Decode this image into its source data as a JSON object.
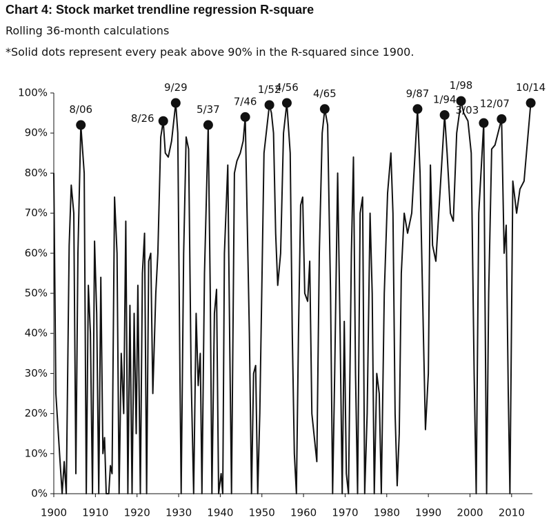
{
  "chart_data": {
    "type": "line",
    "title": "Chart 4: Stock market trendline regression R-square",
    "subtitle": "Rolling 36-month calculations",
    "note": "*Solid dots represent every peak above 90% in the R-squared since 1900.",
    "color": "#111111",
    "xlim": [
      1900,
      2015
    ],
    "xticks": [
      1900,
      1910,
      1920,
      1930,
      1940,
      1950,
      1960,
      1970,
      1980,
      1990,
      2000,
      2010
    ],
    "ylim": [
      0,
      100
    ],
    "yticks": [
      {
        "value": 0,
        "label": "0%"
      },
      {
        "value": 10,
        "label": "10%"
      },
      {
        "value": 20,
        "label": "20%"
      },
      {
        "value": 30,
        "label": "30%"
      },
      {
        "value": 40,
        "label": "40%"
      },
      {
        "value": 50,
        "label": "50%"
      },
      {
        "value": 60,
        "label": "60%"
      },
      {
        "value": 70,
        "label": "70%"
      },
      {
        "value": 80,
        "label": "80%"
      },
      {
        "value": 90,
        "label": "90%"
      },
      {
        "value": 100,
        "label": "100%"
      }
    ],
    "x": [
      1900,
      1900.5,
      1901.5,
      1902,
      1902.5,
      1903,
      1903.7,
      1904.2,
      1904.8,
      1905.3,
      1905.8,
      1906.5,
      1907.3,
      1907.8,
      1908.3,
      1908.8,
      1909.3,
      1909.8,
      1910.3,
      1910.8,
      1911.3,
      1911.8,
      1912.2,
      1912.6,
      1913.2,
      1913.6,
      1914.0,
      1914.6,
      1915.2,
      1915.7,
      1916.2,
      1916.8,
      1917.3,
      1917.8,
      1918.3,
      1918.8,
      1919.3,
      1919.8,
      1920.2,
      1920.8,
      1921.3,
      1921.8,
      1922.3,
      1922.8,
      1923.3,
      1923.8,
      1924.5,
      1925,
      1925.7,
      1926.3,
      1926.8,
      1927.5,
      1928.3,
      1929.3,
      1929.8,
      1930.3,
      1930.6,
      1931.2,
      1931.8,
      1932.4,
      1933,
      1933.6,
      1934.2,
      1934.7,
      1935.2,
      1935.6,
      1936.2,
      1937.1,
      1937.6,
      1938,
      1938.6,
      1939.1,
      1939.6,
      1940.2,
      1940.6,
      1941.0,
      1941.8,
      1942.3,
      1942.7,
      1943.4,
      1944.0,
      1944.8,
      1945.5,
      1946.0,
      1947,
      1947.5,
      1948,
      1948.5,
      1949,
      1949.5,
      1950.5,
      1951.8,
      1952.3,
      1952.8,
      1953.3,
      1953.8,
      1954.5,
      1955.2,
      1956.0,
      1956.8,
      1957.3,
      1957.8,
      1958.3,
      1958.8,
      1959.3,
      1959.8,
      1960.3,
      1961,
      1961.5,
      1962,
      1962.8,
      1963.2,
      1963.8,
      1964.5,
      1965.1,
      1965.8,
      1966.5,
      1967,
      1967.5,
      1968.2,
      1968.8,
      1969.3,
      1969.8,
      1970.3,
      1970.8,
      1971.5,
      1972,
      1972.5,
      1973,
      1973.6,
      1974.2,
      1974.7,
      1975.3,
      1976.0,
      1976.5,
      1977,
      1977.6,
      1978.2,
      1978.7,
      1979.4,
      1980.2,
      1981.0,
      1981.5,
      1982,
      1982.5,
      1983,
      1983.5,
      1984.2,
      1985,
      1986,
      1987.4,
      1988,
      1988.8,
      1989.3,
      1990,
      1990.5,
      1991,
      1991.8,
      1992.5,
      1993.9,
      1994.5,
      1995.3,
      1996,
      1996.8,
      1997.85,
      1998.5,
      1999.5,
      2000.3,
      2001,
      2001.5,
      2002.1,
      2003.3,
      2003.6,
      2004.0,
      2004.5,
      2005.2,
      2006,
      2007.6,
      2008.2,
      2008.7,
      2009.2,
      2009.6,
      2010.3,
      2011.2,
      2012,
      2013,
      2014.6
    ],
    "values": [
      80,
      25,
      8,
      0,
      8,
      0,
      62,
      77,
      70,
      5,
      60,
      92,
      80,
      0,
      52,
      40,
      0,
      63,
      45,
      0,
      54,
      10,
      14,
      0,
      0,
      7,
      5,
      74,
      60,
      0,
      35,
      20,
      68,
      0,
      47,
      0,
      45,
      15,
      52,
      0,
      55,
      65,
      0,
      58,
      60,
      25,
      50,
      60,
      89,
      93,
      85,
      84,
      88,
      97.5,
      90,
      30,
      0,
      60,
      89,
      86,
      30,
      0,
      45,
      27,
      35,
      0,
      55,
      92,
      50,
      0,
      45,
      51,
      0,
      5,
      0,
      60,
      82,
      35,
      0,
      80,
      83,
      85,
      88,
      94,
      40,
      0,
      30,
      32,
      0,
      20,
      85,
      97,
      95,
      90,
      65,
      52,
      60,
      90,
      97.5,
      85,
      40,
      10,
      0,
      40,
      72,
      74,
      50,
      48,
      58,
      20,
      12,
      8,
      60,
      90,
      96,
      92,
      50,
      0,
      30,
      80,
      40,
      0,
      43,
      5,
      0,
      60,
      84,
      30,
      0,
      70,
      74,
      0,
      20,
      70,
      50,
      0,
      30,
      25,
      0,
      50,
      75,
      85,
      70,
      20,
      2,
      15,
      55,
      70,
      65,
      70,
      96,
      80,
      40,
      16,
      30,
      82,
      62,
      58,
      70,
      94.5,
      85,
      70,
      68,
      90,
      98,
      95,
      93,
      85,
      30,
      0,
      70,
      92.5,
      50,
      0,
      50,
      86,
      87,
      93.5,
      60,
      67,
      25,
      0,
      78,
      70,
      76,
      78,
      97.5
    ],
    "peaks": {
      "x": [
        1906.5,
        1926.3,
        1929.3,
        1937.1,
        1946.0,
        1951.8,
        1956.0,
        1965.1,
        1987.4,
        1993.9,
        1997.85,
        2003.3,
        2007.6,
        2014.6
      ],
      "values": [
        92,
        93,
        97.5,
        92,
        94,
        97,
        97.5,
        96,
        96,
        94.5,
        98,
        92.5,
        93.5,
        97.5
      ],
      "labels": [
        "8/06",
        "8/26",
        "9/29",
        "5/37",
        "7/46",
        "1/52",
        "4/56",
        "4/65",
        "9/87",
        "1/94",
        "1/98",
        "3/03",
        "12/07",
        "10/14"
      ]
    }
  }
}
